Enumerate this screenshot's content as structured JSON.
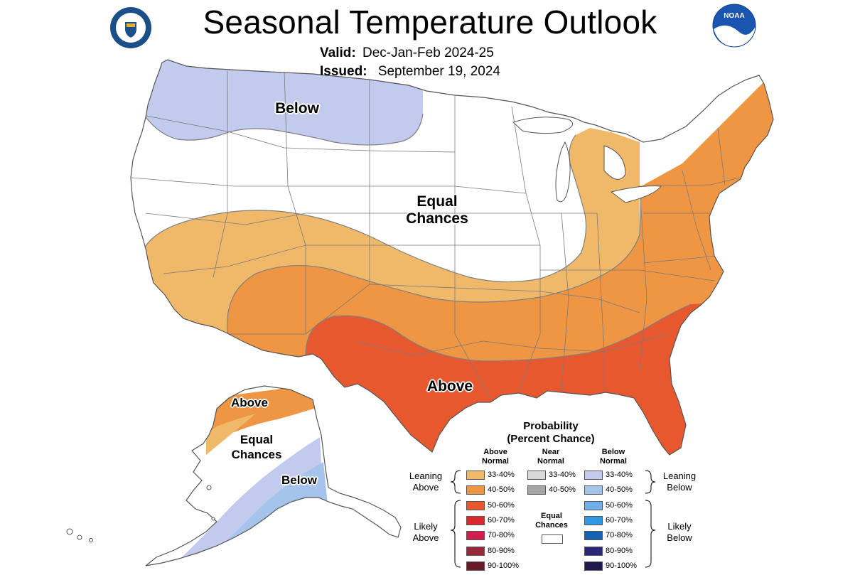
{
  "header": {
    "title": "Seasonal Temperature Outlook",
    "valid_label": "Valid:",
    "valid_value": "Dec-Jan-Feb 2024-25",
    "issued_label": "Issued:",
    "issued_value": "September 19, 2024"
  },
  "logos": {
    "left": "seal-icon",
    "right_text": "NOAA"
  },
  "map_labels": {
    "conus_below": "Below",
    "conus_equal_1": "Equal",
    "conus_equal_2": "Chances",
    "conus_above": "Above",
    "ak_above": "Above",
    "ak_equal_1": "Equal",
    "ak_equal_2": "Chances",
    "ak_below": "Below"
  },
  "legend": {
    "title_1": "Probability",
    "title_2": "(Percent Chance)",
    "above_head_1": "Above",
    "above_head_2": "Normal",
    "near_head_1": "Near",
    "near_head_2": "Normal",
    "below_head_1": "Below",
    "below_head_2": "Normal",
    "above": [
      {
        "label": "33-40%",
        "color": "#f0b96a"
      },
      {
        "label": "40-50%",
        "color": "#ee9644"
      },
      {
        "label": "50-60%",
        "color": "#e8582f"
      },
      {
        "label": "60-70%",
        "color": "#d92a2b"
      },
      {
        "label": "70-80%",
        "color": "#d01e4f"
      },
      {
        "label": "80-90%",
        "color": "#962839"
      },
      {
        "label": "90-100%",
        "color": "#6a1a24"
      }
    ],
    "near": [
      {
        "label": "33-40%",
        "color": "#d9d9d9"
      },
      {
        "label": "40-50%",
        "color": "#a6a6a6"
      }
    ],
    "below": [
      {
        "label": "33-40%",
        "color": "#c2cbee"
      },
      {
        "label": "40-50%",
        "color": "#a5c4ec"
      },
      {
        "label": "50-60%",
        "color": "#6fb0ea"
      },
      {
        "label": "60-70%",
        "color": "#2f98e3"
      },
      {
        "label": "70-80%",
        "color": "#1363b3"
      },
      {
        "label": "80-90%",
        "color": "#28277a"
      },
      {
        "label": "90-100%",
        "color": "#1f1a4d"
      }
    ],
    "equal_1": "Equal",
    "equal_2": "Chances",
    "equal_color": "#ffffff",
    "leaning_above_1": "Leaning",
    "leaning_above_2": "Above",
    "likely_above_1": "Likely",
    "likely_above_2": "Above",
    "leaning_below_1": "Leaning",
    "leaning_below_2": "Below",
    "likely_below_1": "Likely",
    "likely_below_2": "Below"
  }
}
